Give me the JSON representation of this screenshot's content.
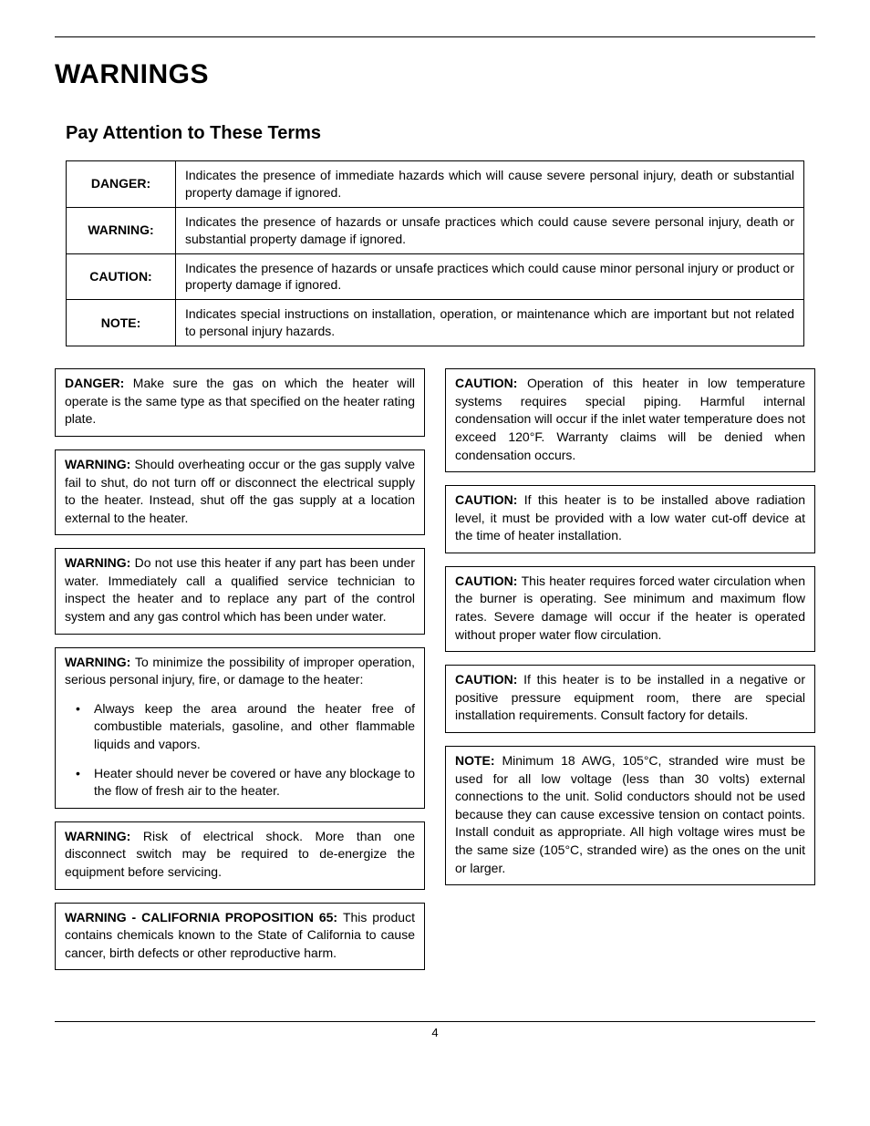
{
  "heading": "WARNINGS",
  "subheading": "Pay Attention to These Terms",
  "terms_table": {
    "rows": [
      {
        "label": "DANGER:",
        "desc": "Indicates the presence of immediate hazards which will cause severe personal injury, death or substantial property damage if ignored."
      },
      {
        "label": "WARNING:",
        "desc": "Indicates the presence of hazards or unsafe practices which could cause severe personal injury, death or substantial property damage if ignored."
      },
      {
        "label": "CAUTION:",
        "desc": "Indicates the presence of hazards or unsafe practices which could cause minor personal injury or product or property damage if ignored."
      },
      {
        "label": "NOTE:",
        "desc": "Indicates special instructions on installation, operation, or maintenance which are important but not related to personal injury hazards."
      }
    ]
  },
  "left_column": [
    {
      "label": "DANGER:",
      "text": "Make sure the gas on which the heater will operate is the same type as that specified on the heater rating plate."
    },
    {
      "label": "WARNING:",
      "text": "Should overheating occur or the gas supply valve fail to shut, do not turn off or disconnect the electrical supply to the heater. Instead, shut off the gas supply at a location external to the heater."
    },
    {
      "label": "WARNING:",
      "text": "Do not use this heater if any part has been under water. Immediately call a qualified service technician to inspect the heater and to replace any part of the control system and any gas control which has been under water."
    },
    {
      "label": "WARNING:",
      "text": "To minimize the possibility of improper operation, serious personal injury, fire, or damage to the heater:",
      "bullets": [
        "Always keep the area around the heater free of combustible materials, gasoline, and other flammable liquids and vapors.",
        "Heater should never be covered or have any blockage to the flow of fresh air to the heater."
      ]
    },
    {
      "label": "WARNING:",
      "text": "Risk of electrical shock. More than one disconnect switch may be required to de-energize the equipment before servicing."
    },
    {
      "label": "WARNING - CALIFORNIA PROPOSITION 65:",
      "text": "This product contains chemicals known to the State of California to cause cancer, birth defects or other reproductive harm."
    }
  ],
  "right_column": [
    {
      "label": "CAUTION:",
      "text": "Operation of this heater in low temperature systems requires special piping. Harmful internal condensation will occur if the inlet water temperature does not exceed 120°F. Warranty claims will be denied when condensation occurs."
    },
    {
      "label": "CAUTION:",
      "text": "If this heater is to be installed above radiation level, it must be provided with a low water cut-off device at the time of heater installation."
    },
    {
      "label": "CAUTION:",
      "text": "This heater requires forced water circulation when the burner is operating. See minimum and maximum flow rates. Severe damage will occur if the heater is operated without proper water flow circulation."
    },
    {
      "label": "CAUTION:",
      "text": "If this heater is to be installed in a negative or positive pressure equipment room, there are special installation requirements. Consult factory for details."
    },
    {
      "label": "NOTE:",
      "text": "Minimum 18 AWG, 105°C, stranded wire must be used for all low voltage (less than 30 volts) external connections to the unit. Solid conductors should not be used because they can cause excessive tension on contact points. Install conduit as appropriate. All high voltage wires must be the same size (105°C, stranded wire) as the ones on the unit or larger."
    }
  ],
  "page_number": "4"
}
